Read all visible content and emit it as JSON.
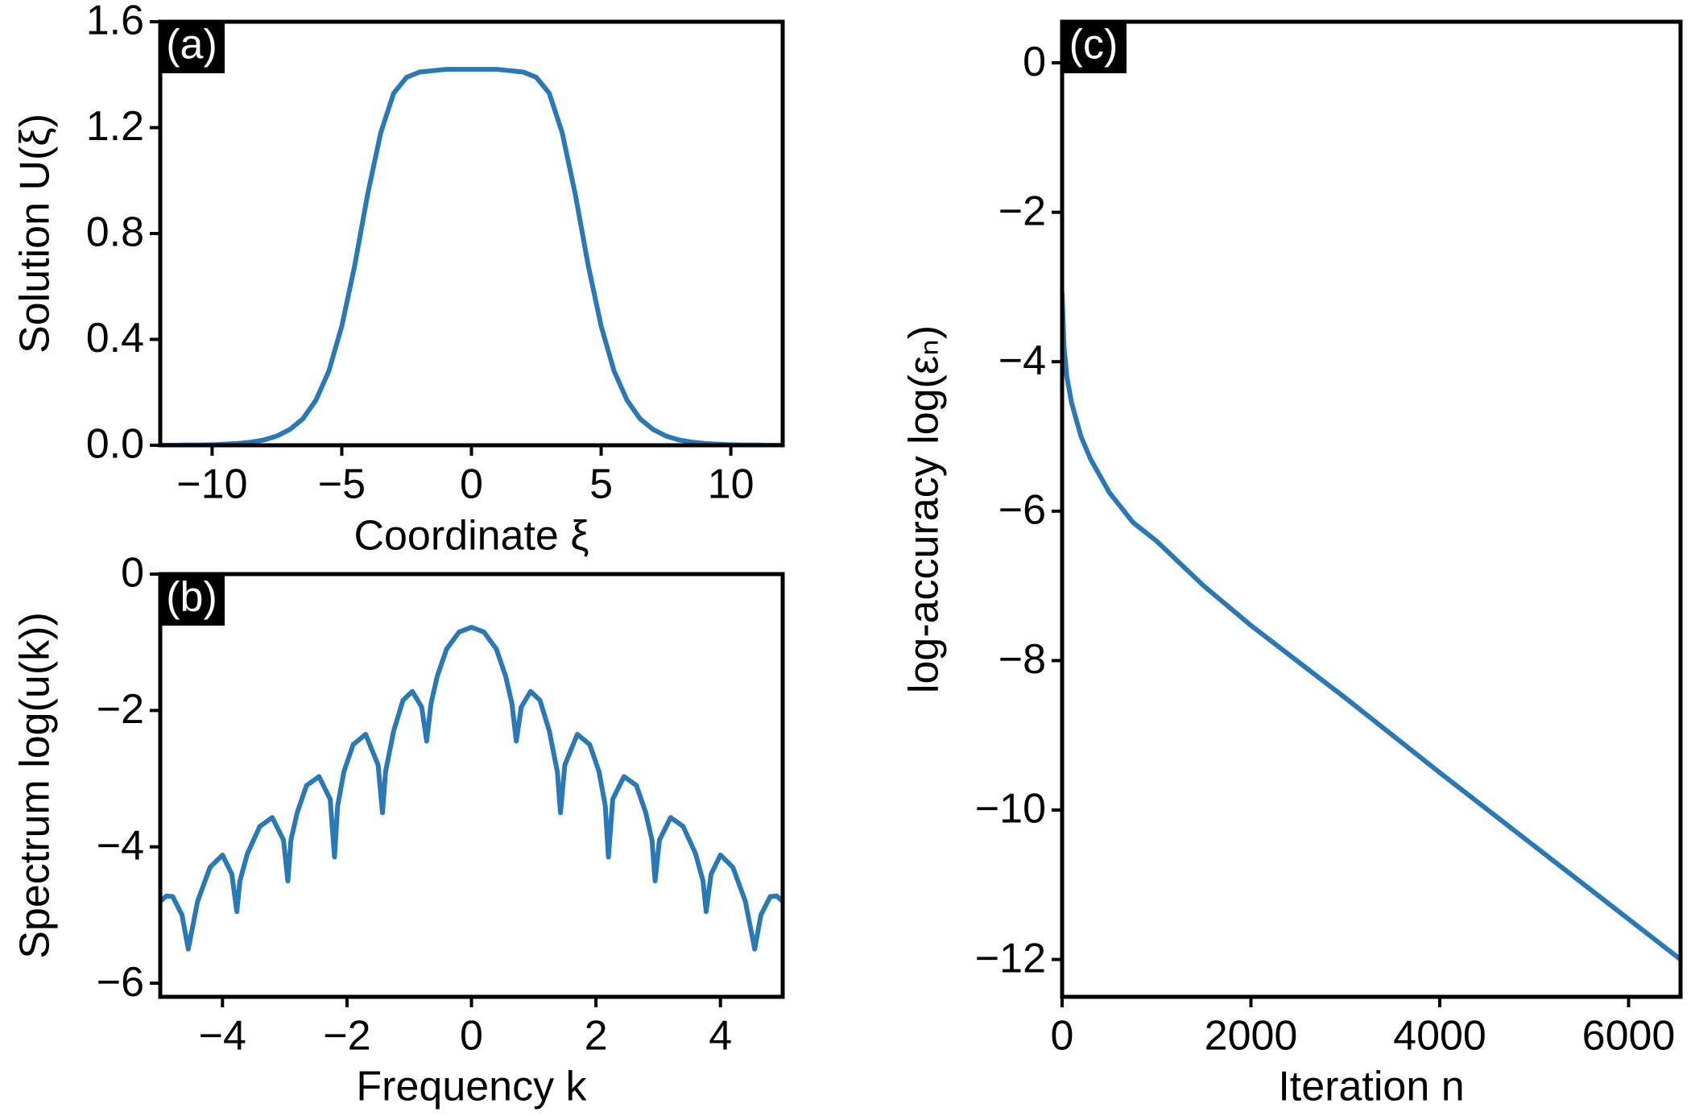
{
  "chart_data": [
    {
      "type": "line",
      "panel_label": "(a)",
      "xlabel": "Coordinate ξ",
      "ylabel": "Solution U(ξ)",
      "color": "#2a78b4",
      "grid": false,
      "x": [
        -12,
        -11.5,
        -11,
        -10.5,
        -10,
        -9.5,
        -9,
        -8.5,
        -8,
        -7.5,
        -7,
        -6.5,
        -6,
        -5.5,
        -5,
        -4.5,
        -4,
        -3.5,
        -3,
        -2.5,
        -2,
        -1.5,
        -1,
        -0.5,
        0,
        0.5,
        1,
        1.5,
        2,
        2.5,
        3,
        3.5,
        4,
        4.5,
        5,
        5.5,
        6,
        6.5,
        7,
        7.5,
        8,
        8.5,
        9,
        9.5,
        10,
        10.5,
        11,
        11.5,
        12
      ],
      "values": [
        0,
        0,
        0.001,
        0.001,
        0.002,
        0.004,
        0.007,
        0.012,
        0.02,
        0.035,
        0.06,
        0.1,
        0.17,
        0.28,
        0.45,
        0.68,
        0.95,
        1.18,
        1.33,
        1.39,
        1.41,
        1.415,
        1.42,
        1.42,
        1.42,
        1.42,
        1.42,
        1.415,
        1.41,
        1.39,
        1.33,
        1.18,
        0.95,
        0.68,
        0.45,
        0.28,
        0.17,
        0.1,
        0.06,
        0.035,
        0.02,
        0.012,
        0.007,
        0.004,
        0.002,
        0.001,
        0.001,
        0,
        0
      ],
      "xlim": [
        -12,
        12
      ],
      "ylim": [
        0,
        1.6
      ],
      "xticks": [
        {
          "value": -10,
          "label": "−10"
        },
        {
          "value": -5,
          "label": "−5"
        },
        0,
        5,
        10
      ],
      "yticks": [
        {
          "value": 0,
          "label": "0.0"
        },
        0.4,
        0.8,
        1.2,
        1.6
      ]
    },
    {
      "type": "line",
      "panel_label": "(b)",
      "xlabel": "Frequency k",
      "ylabel": "Spectrum log(u(k))",
      "color": "#2a78b4",
      "grid": false,
      "x": [
        -5,
        -4.9,
        -4.8,
        -4.65,
        -4.55,
        -4.4,
        -4.2,
        -4.0,
        -3.85,
        -3.77,
        -3.72,
        -3.6,
        -3.4,
        -3.2,
        -3.02,
        -2.95,
        -2.9,
        -2.8,
        -2.65,
        -2.45,
        -2.27,
        -2.2,
        -2.15,
        -2.05,
        -1.9,
        -1.7,
        -1.5,
        -1.43,
        -1.38,
        -1.25,
        -1.1,
        -0.95,
        -0.8,
        -0.72,
        -0.65,
        -0.55,
        -0.4,
        -0.2,
        0,
        0.2,
        0.4,
        0.55,
        0.65,
        0.72,
        0.8,
        0.95,
        1.1,
        1.25,
        1.38,
        1.43,
        1.5,
        1.7,
        1.9,
        2.05,
        2.15,
        2.2,
        2.27,
        2.45,
        2.65,
        2.8,
        2.9,
        2.95,
        3.02,
        3.2,
        3.4,
        3.6,
        3.72,
        3.77,
        3.85,
        4.0,
        4.2,
        4.4,
        4.55,
        4.65,
        4.8,
        4.9,
        5
      ],
      "values": [
        -4.8,
        -4.72,
        -4.73,
        -5.0,
        -5.5,
        -4.8,
        -4.3,
        -4.12,
        -4.4,
        -4.95,
        -4.5,
        -4.1,
        -3.7,
        -3.57,
        -3.9,
        -4.5,
        -3.9,
        -3.5,
        -3.1,
        -2.97,
        -3.3,
        -4.15,
        -3.4,
        -2.9,
        -2.5,
        -2.35,
        -2.8,
        -3.5,
        -2.9,
        -2.3,
        -1.85,
        -1.72,
        -1.95,
        -2.45,
        -1.9,
        -1.5,
        -1.1,
        -0.85,
        -0.78,
        -0.85,
        -1.1,
        -1.5,
        -1.9,
        -2.45,
        -1.95,
        -1.72,
        -1.85,
        -2.3,
        -2.9,
        -3.5,
        -2.8,
        -2.35,
        -2.5,
        -2.9,
        -3.4,
        -4.15,
        -3.3,
        -2.97,
        -3.1,
        -3.5,
        -3.9,
        -4.5,
        -3.9,
        -3.57,
        -3.7,
        -4.1,
        -4.5,
        -4.95,
        -4.4,
        -4.12,
        -4.3,
        -4.8,
        -5.5,
        -5.0,
        -4.73,
        -4.72,
        -4.8
      ],
      "xlim": [
        -5,
        5
      ],
      "ylim": [
        -6.2,
        0
      ],
      "xticks": [
        {
          "value": -4,
          "label": "−4"
        },
        {
          "value": -2,
          "label": "−2"
        },
        0,
        2,
        4
      ],
      "yticks": [
        {
          "value": -6,
          "label": "−6"
        },
        {
          "value": -4,
          "label": "−4"
        },
        {
          "value": -2,
          "label": "−2"
        },
        0
      ]
    },
    {
      "type": "line",
      "panel_label": "(c)",
      "xlabel": "Iteration n",
      "ylabel": "log-accuracy log(εₙ)",
      "color": "#2a78b4",
      "grid": false,
      "x": [
        0,
        20,
        50,
        100,
        200,
        300,
        500,
        750,
        1000,
        1500,
        2000,
        3000,
        4000,
        5000,
        6000,
        6550
      ],
      "values": [
        -3.08,
        -3.8,
        -4.2,
        -4.55,
        -5.0,
        -5.3,
        -5.75,
        -6.15,
        -6.4,
        -7.0,
        -7.53,
        -8.5,
        -9.5,
        -10.48,
        -11.46,
        -12.0
      ],
      "xlim": [
        0,
        6550
      ],
      "ylim": [
        -12.5,
        0.55
      ],
      "xticks": [
        0,
        2000,
        4000,
        6000
      ],
      "yticks": [
        {
          "value": -12,
          "label": "−12"
        },
        {
          "value": -10,
          "label": "−10"
        },
        {
          "value": -8,
          "label": "−8"
        },
        {
          "value": -6,
          "label": "−6"
        },
        {
          "value": -4,
          "label": "−4"
        },
        {
          "value": -2,
          "label": "−2"
        },
        0
      ]
    }
  ]
}
